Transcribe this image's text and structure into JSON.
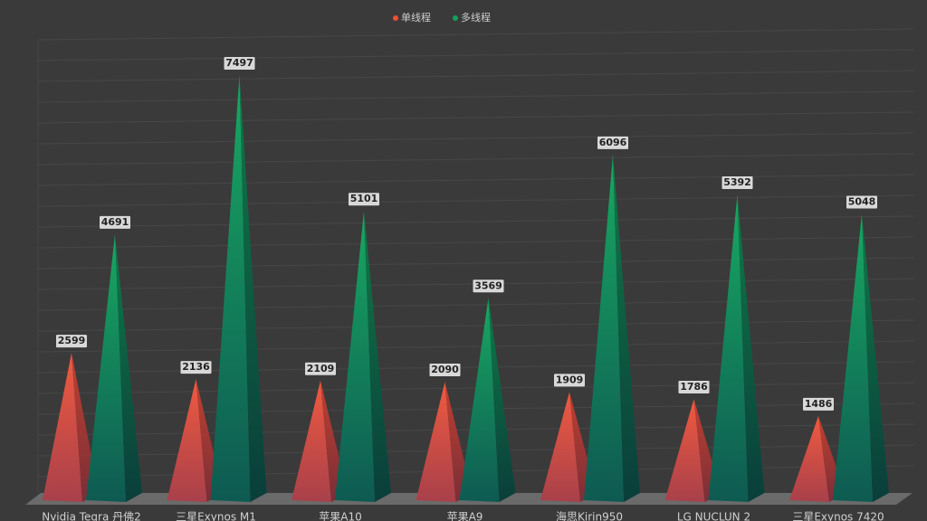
{
  "chart_data": {
    "type": "pyramid",
    "categories": [
      "Nvidia Tegra 丹佛2",
      "三星Exynos M1",
      "苹果A10",
      "苹果A9",
      "海思Kirin950",
      "LG NUCLUN 2",
      "三星Exynos 7420"
    ],
    "series": [
      {
        "name": "单线程",
        "color": "#e8503a",
        "values": [
          2599,
          2136,
          2109,
          2090,
          1909,
          1786,
          1486
        ]
      },
      {
        "name": "多线程",
        "color": "#12a05a",
        "values": [
          4691,
          7497,
          5101,
          3569,
          6096,
          5392,
          5048
        ]
      }
    ],
    "legend": "top"
  }
}
